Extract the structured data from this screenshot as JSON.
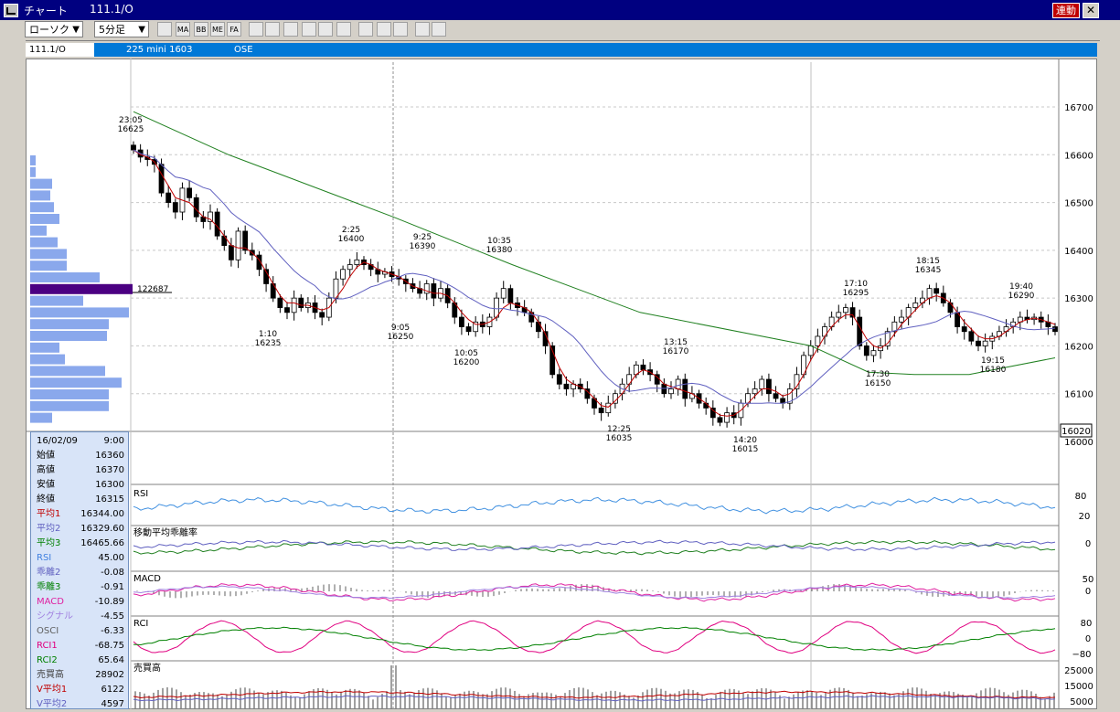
{
  "window": {
    "title": "チャート",
    "symbol": "111.1/O",
    "link_label": "連動",
    "close_label": "✕"
  },
  "toolbar": {
    "chart_type": "ローソク",
    "interval": "5分足",
    "buttons": [
      {
        "icon": "symbol-search-icon",
        "label": ""
      },
      {
        "icon": "moving-average-icon",
        "label": "MA"
      },
      {
        "icon": "bollinger-bands-icon",
        "label": "BB"
      },
      {
        "icon": "envelope-icon",
        "label": "ME"
      },
      {
        "icon": "fibonacci-icon",
        "label": "FA"
      },
      {
        "icon": "line-chart-icon",
        "label": ""
      },
      {
        "icon": "candlestick-icon",
        "label": ""
      },
      {
        "icon": "indicator-icon",
        "label": ""
      },
      {
        "icon": "zoom-icon",
        "label": ""
      },
      {
        "icon": "price-board-icon",
        "label": ""
      },
      {
        "icon": "split-icon",
        "label": ""
      },
      {
        "icon": "pen-icon",
        "label": ""
      },
      {
        "icon": "cursor-icon",
        "label": ""
      },
      {
        "icon": "eraser-icon",
        "label": ""
      },
      {
        "icon": "settings-icon",
        "label": ""
      },
      {
        "icon": "ruler-icon",
        "label": ""
      }
    ]
  },
  "infobar": {
    "symbol": "111.1/O",
    "contract": "225 mini 1603",
    "exchange": "OSE"
  },
  "data_panel": {
    "rows": [
      {
        "label": "16/02/09",
        "value": "9:00",
        "color": "#000000"
      },
      {
        "label": "始値",
        "value": "16360",
        "color": "#000000"
      },
      {
        "label": "高値",
        "value": "16370",
        "color": "#000000"
      },
      {
        "label": "安値",
        "value": "16300",
        "color": "#000000"
      },
      {
        "label": "終値",
        "value": "16315",
        "color": "#000000"
      },
      {
        "label": "平均1",
        "value": "16344.00",
        "color": "#c00000"
      },
      {
        "label": "平均2",
        "value": "16329.60",
        "color": "#6060c0"
      },
      {
        "label": "平均3",
        "value": "16465.66",
        "color": "#008000"
      },
      {
        "label": "RSI",
        "value": "45.00",
        "color": "#4080e0"
      },
      {
        "label": "乖離2",
        "value": "-0.08",
        "color": "#6060c0"
      },
      {
        "label": "乖離3",
        "value": "-0.91",
        "color": "#008000"
      },
      {
        "label": "MACD",
        "value": "-10.89",
        "color": "#e020a0"
      },
      {
        "label": "シグナル",
        "value": "-4.55",
        "color": "#a080e0"
      },
      {
        "label": "OSCI",
        "value": "-6.33",
        "color": "#606060"
      },
      {
        "label": "RCI1",
        "value": "-68.75",
        "color": "#e00080"
      },
      {
        "label": "RCI2",
        "value": "65.64",
        "color": "#008000"
      },
      {
        "label": "売買高",
        "value": "28902",
        "color": "#404040"
      },
      {
        "label": "V平均1",
        "value": "6122",
        "color": "#c00000"
      },
      {
        "label": "V平均2",
        "value": "4597",
        "color": "#6060c0"
      }
    ]
  },
  "chart_data": {
    "type": "candlestick",
    "price_axis": {
      "ticks": [
        "16700",
        "16600",
        "16500",
        "16400",
        "16300",
        "16200",
        "16100",
        "16000"
      ],
      "current_price": "16020"
    },
    "volume_profile_label": "122687",
    "annotations": [
      {
        "time": "23:05",
        "price": "16625"
      },
      {
        "time": "2:25",
        "price": "16400"
      },
      {
        "time": "1:10",
        "price": "16235"
      },
      {
        "time": "9:25",
        "price": "16390"
      },
      {
        "time": "9:05",
        "price": "16250"
      },
      {
        "time": "10:35",
        "price": "16380"
      },
      {
        "time": "10:05",
        "price": "16200"
      },
      {
        "time": "13:15",
        "price": "16170"
      },
      {
        "time": "12:25",
        "price": "16035"
      },
      {
        "time": "14:20",
        "price": "16015"
      },
      {
        "time": "17:10",
        "price": "16295"
      },
      {
        "time": "17:30",
        "price": "16150"
      },
      {
        "time": "18:15",
        "price": "16345"
      },
      {
        "time": "19:40",
        "price": "16290"
      },
      {
        "time": "19:15",
        "price": "16180"
      }
    ],
    "closes": [
      16610,
      16595,
      16590,
      16580,
      16520,
      16500,
      16480,
      16530,
      16510,
      16470,
      16460,
      16480,
      16430,
      16410,
      16380,
      16440,
      16400,
      16390,
      16360,
      16330,
      16300,
      16280,
      16270,
      16300,
      16280,
      16290,
      16270,
      16260,
      16300,
      16340,
      16360,
      16370,
      16380,
      16370,
      16360,
      16350,
      16355,
      16345,
      16340,
      16330,
      16320,
      16310,
      16330,
      16300,
      16320,
      16290,
      16260,
      16240,
      16230,
      16250,
      16240,
      16260,
      16300,
      16320,
      16290,
      16280,
      16270,
      16250,
      16230,
      16200,
      16140,
      16120,
      16110,
      16120,
      16110,
      16090,
      16070,
      16060,
      16080,
      16100,
      16120,
      16140,
      16160,
      16150,
      16140,
      16120,
      16100,
      16110,
      16130,
      16090,
      16100,
      16080,
      16070,
      16050,
      16040,
      16060,
      16050,
      16080,
      16100,
      16110,
      16130,
      16100,
      16090,
      16080,
      16110,
      16140,
      16180,
      16200,
      16220,
      16240,
      16260,
      16270,
      16280,
      16260,
      16200,
      16180,
      16190,
      16200,
      16230,
      16250,
      16260,
      16280,
      16290,
      16300,
      16320,
      16310,
      16290,
      16270,
      16240,
      16230,
      16210,
      16200,
      16210,
      16220,
      16230,
      16240,
      16250,
      16260,
      16255,
      16260,
      16250,
      16240,
      16230
    ],
    "ma1": [
      16610,
      16600,
      16595,
      16585,
      16560,
      16535,
      16510,
      16505,
      16500,
      16485,
      16470,
      16465,
      16450,
      16430,
      16410,
      16405,
      16405,
      16395,
      16380,
      16355,
      16330,
      16305,
      16290,
      16290,
      16285,
      16285,
      16280,
      16275,
      16280,
      16300,
      16320,
      16345,
      16365,
      16375,
      16370,
      16360,
      16355,
      16350,
      16345,
      16335,
      16325,
      16320,
      16315,
      16310,
      16310,
      16305,
      16290,
      16270,
      16255,
      16245,
      16245,
      16250,
      16260,
      16280,
      16290,
      16285,
      16280,
      16270,
      16250,
      16225,
      16190,
      16155,
      16130,
      16120,
      16115,
      16105,
      16090,
      16075,
      16072,
      16085,
      16100,
      16120,
      16140,
      16150,
      16145,
      16135,
      16120,
      16115,
      16110,
      16105,
      16100,
      16090,
      16080,
      16065,
      16055,
      16053,
      16055,
      16065,
      16080,
      16095,
      16110,
      16110,
      16105,
      16095,
      16100,
      16115,
      16140,
      16170,
      16195,
      16220,
      16240,
      16255,
      16265,
      16265,
      16240,
      16215,
      16200,
      16195,
      16205,
      16225,
      16245,
      16260,
      16275,
      16290,
      16300,
      16305,
      16300,
      16290,
      16270,
      16250,
      16235,
      16220,
      16215,
      16215,
      16220,
      16230,
      16240,
      16250,
      16255,
      16258,
      16255,
      16250,
      16245
    ]
  }
}
